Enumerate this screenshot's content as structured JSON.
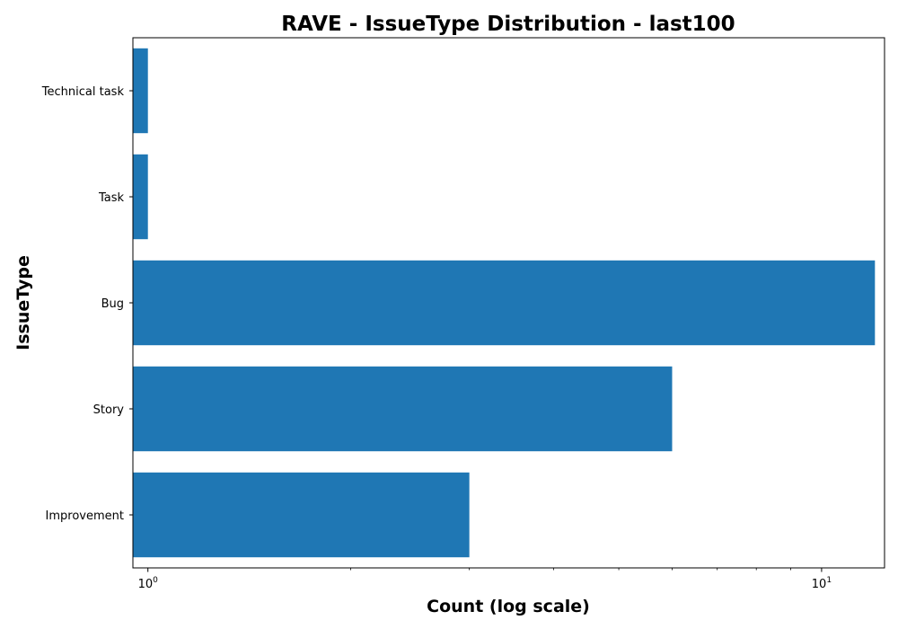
{
  "chart_data": {
    "type": "bar",
    "orientation": "horizontal",
    "title": "RAVE - IssueType Distribution - last100",
    "xlabel": "Count (log scale)",
    "ylabel": "IssueType",
    "x_scale": "log",
    "xlim": [
      0.95,
      12.4
    ],
    "x_ticks": [
      {
        "value": 1,
        "base": "10",
        "exp": "0"
      },
      {
        "value": 10,
        "base": "10",
        "exp": "1"
      }
    ],
    "x_minor_ticks": [
      2,
      3,
      4,
      5,
      6,
      7,
      8,
      9
    ],
    "categories": [
      "Improvement",
      "Story",
      "Bug",
      "Task",
      "Technical task"
    ],
    "values": [
      3,
      6,
      12,
      1,
      1
    ],
    "bar_color": "#1f77b4",
    "grid": false
  }
}
